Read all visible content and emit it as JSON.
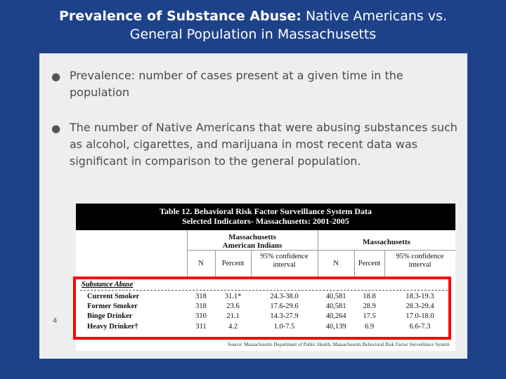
{
  "slide": {
    "title_bold": "Prevalence of Substance Abuse:",
    "title_rest_line1": " Native Americans vs.",
    "title_line2": "General Population in Massachusetts",
    "page_number": "4"
  },
  "bullets": [
    "Prevalence: number of cases present at a given time in the population",
    "The number of Native Americans that were abusing substances such as alcohol, cigarettes, and marijuana in most recent data was significant in comparison to the general population."
  ],
  "table": {
    "title_line1": "Table 12.  Behavioral Risk Factor Surveillance System Data",
    "title_line2": "Selected Indicators- Massachusetts: 2001-2005",
    "group1_line1": "Massachusetts",
    "group1_line2": "American Indians",
    "group2": "Massachusetts",
    "col_n": "N",
    "col_percent": "Percent",
    "col_ci_line1": "95% confidence",
    "col_ci_line2": "interval",
    "section": "Substance Abuse",
    "rows": [
      {
        "label": "Current Smoker",
        "n1": "318",
        "p1": "31.1*",
        "ci1": "24.3-38.0",
        "n2": "40,581",
        "p2": "18.8",
        "ci2": "18.3-19.3"
      },
      {
        "label": "Former Smoker",
        "n1": "318",
        "p1": "23.6",
        "ci1": "17.6-29.6",
        "n2": "40,581",
        "p2": "28.9",
        "ci2": "28.3-29.4"
      },
      {
        "label": "Binge Drinker",
        "n1": "310",
        "p1": "21.1",
        "ci1": "14.3-27.9",
        "n2": "40,264",
        "p2": "17.5",
        "ci2": "17.0-18.0"
      },
      {
        "label": "Heavy Drinker†",
        "n1": "311",
        "p1": "4.2",
        "ci1": "1.0-7.5",
        "n2": "40,139",
        "p2": "6.9",
        "ci2": "6.6-7.3"
      }
    ],
    "source": "Source:  Massachusetts Department of Public Health.  Massachusetts Behavioral Risk Factor Surveillance System",
    "highlight_color": "#ff0000"
  }
}
